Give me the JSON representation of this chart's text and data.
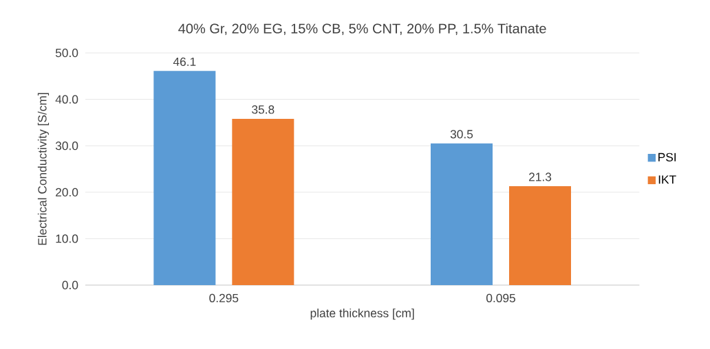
{
  "chart_data": {
    "type": "bar",
    "title": "40% Gr, 20% EG, 15% CB, 5% CNT, 20% PP, 1.5% Titanate",
    "xlabel": "plate thickness [cm]",
    "ylabel": "Electrical Conductivity [S/cm]",
    "categories": [
      "0.295",
      "0.095"
    ],
    "series": [
      {
        "name": "PSI",
        "color": "#5b9bd5",
        "values": [
          46.1,
          30.5
        ]
      },
      {
        "name": "IKT",
        "color": "#ed7d31",
        "values": [
          35.8,
          21.3
        ]
      }
    ],
    "ylim": [
      0,
      50
    ],
    "yticks": [
      {
        "value": 0,
        "label": "0.0"
      },
      {
        "value": 10,
        "label": "10.0"
      },
      {
        "value": 20,
        "label": "20.0"
      },
      {
        "value": 30,
        "label": "30.0"
      },
      {
        "value": 40,
        "label": "40.0"
      },
      {
        "value": 50,
        "label": "50.0"
      }
    ],
    "grid": "y",
    "legend": "right",
    "data_labels": true
  }
}
